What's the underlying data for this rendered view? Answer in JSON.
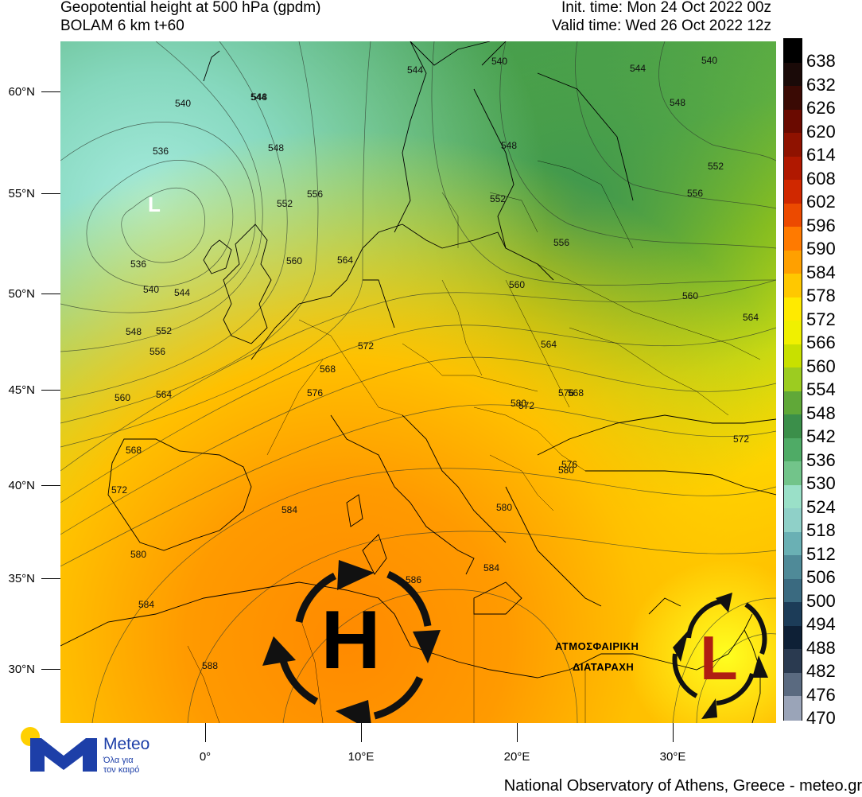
{
  "header": {
    "title_line1": "Geopotential height at 500 hPa (gpdm)",
    "title_line2": "BOLAM 6 km t+60",
    "init_time": "Init. time: Mon 24 Oct 2022 00z",
    "valid_time": "Valid time: Wed 26 Oct 2022 12z"
  },
  "axes": {
    "lat_labels": [
      "60°N",
      "55°N",
      "50°N",
      "45°N",
      "40°N",
      "35°N",
      "30°N"
    ],
    "lon_labels": [
      "0°",
      "10°E",
      "20°E",
      "30°E"
    ]
  },
  "colorbar": {
    "labels": [
      "638",
      "632",
      "626",
      "620",
      "614",
      "608",
      "602",
      "596",
      "590",
      "584",
      "578",
      "572",
      "566",
      "560",
      "554",
      "548",
      "542",
      "536",
      "530",
      "524",
      "518",
      "512",
      "506",
      "500",
      "494",
      "488",
      "482",
      "476",
      "470"
    ]
  },
  "contour_labels": [
    {
      "text": "540"
    },
    {
      "text": "536"
    },
    {
      "text": "544"
    },
    {
      "text": "548"
    },
    {
      "text": "552"
    },
    {
      "text": "556"
    },
    {
      "text": "560"
    },
    {
      "text": "564"
    },
    {
      "text": "536"
    },
    {
      "text": "540"
    },
    {
      "text": "544"
    },
    {
      "text": "548"
    },
    {
      "text": "552"
    },
    {
      "text": "556"
    },
    {
      "text": "560"
    },
    {
      "text": "564"
    },
    {
      "text": "568"
    },
    {
      "text": "572"
    },
    {
      "text": "576"
    },
    {
      "text": "568"
    },
    {
      "text": "572"
    },
    {
      "text": "576"
    },
    {
      "text": "580"
    },
    {
      "text": "584"
    },
    {
      "text": "580"
    },
    {
      "text": "584"
    },
    {
      "text": "588"
    },
    {
      "text": "586"
    },
    {
      "text": "584"
    },
    {
      "text": "580"
    },
    {
      "text": "580"
    },
    {
      "text": "576"
    },
    {
      "text": "572"
    },
    {
      "text": "568"
    },
    {
      "text": "564"
    },
    {
      "text": "560"
    },
    {
      "text": "556"
    },
    {
      "text": "552"
    },
    {
      "text": "548"
    },
    {
      "text": "540"
    },
    {
      "text": "544"
    },
    {
      "text": "548"
    },
    {
      "text": "544"
    },
    {
      "text": "540"
    },
    {
      "text": "548"
    },
    {
      "text": "552"
    },
    {
      "text": "556"
    },
    {
      "text": "560"
    },
    {
      "text": "564"
    },
    {
      "text": "572"
    }
  ],
  "systems": {
    "low_north": "L",
    "high": "H",
    "low_east": "L",
    "disturbance_line1": "ΑΤΜΟΣΦΑΙΡΙΚΗ",
    "disturbance_line2": "ΔΙΑΤΑΡΑΧΗ"
  },
  "logo": {
    "name": "Meteo",
    "tagline_line1": "Όλα για",
    "tagline_line2": "τον καιρό"
  },
  "footer": "National Observatory of Athens, Greece - meteo.gr"
}
